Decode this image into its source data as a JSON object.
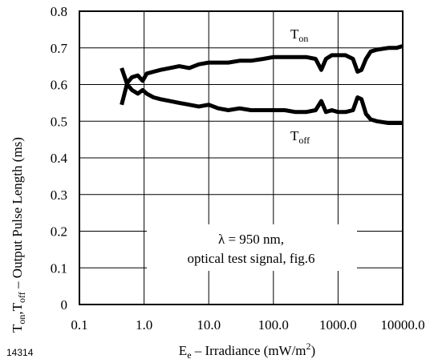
{
  "figure_id": "14314",
  "chart_data": {
    "type": "line",
    "x_scale": "log",
    "xlim": [
      0.1,
      10000
    ],
    "ylim": [
      0,
      0.8
    ],
    "grid": true,
    "xticks": [
      "0.1",
      "1.0",
      "10.0",
      "100.0",
      "1000.0",
      "10000.0"
    ],
    "yticks": [
      "0",
      "0.1",
      "0.2",
      "0.3",
      "0.4",
      "0.5",
      "0.6",
      "0.7",
      "0.8"
    ],
    "xlabel": {
      "main": "E",
      "sub": "e",
      "rest": " – Irradiance (mW/m",
      "sup": "2",
      "end": ")"
    },
    "ylabel": {
      "a": "T",
      "a_sub": "on",
      "sep": ",T",
      "b_sub": "off",
      "rest": "  – Output Pulse Length (ms)"
    },
    "annotation": {
      "line1": "λ = 950 nm,",
      "line2": "optical test signal, fig.6"
    },
    "series": [
      {
        "label_main": "T",
        "label_sub": "on",
        "x": [
          0.45,
          0.55,
          0.65,
          0.8,
          0.95,
          1.1,
          1.4,
          1.8,
          2.5,
          3.5,
          5,
          7,
          10,
          14,
          20,
          30,
          45,
          70,
          100,
          150,
          220,
          320,
          450,
          550,
          650,
          800,
          1000,
          1300,
          1700,
          2000,
          2300,
          2700,
          3200,
          4000,
          6000,
          8000,
          10000
        ],
        "y": [
          0.545,
          0.605,
          0.62,
          0.625,
          0.61,
          0.63,
          0.635,
          0.64,
          0.645,
          0.65,
          0.645,
          0.655,
          0.66,
          0.66,
          0.66,
          0.665,
          0.665,
          0.67,
          0.675,
          0.675,
          0.675,
          0.675,
          0.67,
          0.64,
          0.67,
          0.68,
          0.68,
          0.68,
          0.67,
          0.635,
          0.64,
          0.67,
          0.69,
          0.695,
          0.7,
          0.7,
          0.705
        ]
      },
      {
        "label_main": "T",
        "label_sub": "off",
        "x": [
          0.45,
          0.55,
          0.65,
          0.8,
          0.95,
          1.1,
          1.4,
          1.8,
          2.5,
          3.5,
          5,
          7,
          10,
          14,
          20,
          30,
          45,
          70,
          100,
          150,
          220,
          320,
          450,
          550,
          650,
          800,
          1000,
          1300,
          1700,
          2000,
          2300,
          2700,
          3200,
          4000,
          6000,
          8000,
          10000
        ],
        "y": [
          0.645,
          0.6,
          0.585,
          0.575,
          0.585,
          0.575,
          0.565,
          0.56,
          0.555,
          0.55,
          0.545,
          0.54,
          0.545,
          0.535,
          0.53,
          0.535,
          0.53,
          0.53,
          0.53,
          0.53,
          0.525,
          0.525,
          0.53,
          0.555,
          0.525,
          0.53,
          0.525,
          0.525,
          0.53,
          0.565,
          0.56,
          0.52,
          0.505,
          0.5,
          0.495,
          0.495,
          0.495
        ]
      }
    ]
  }
}
